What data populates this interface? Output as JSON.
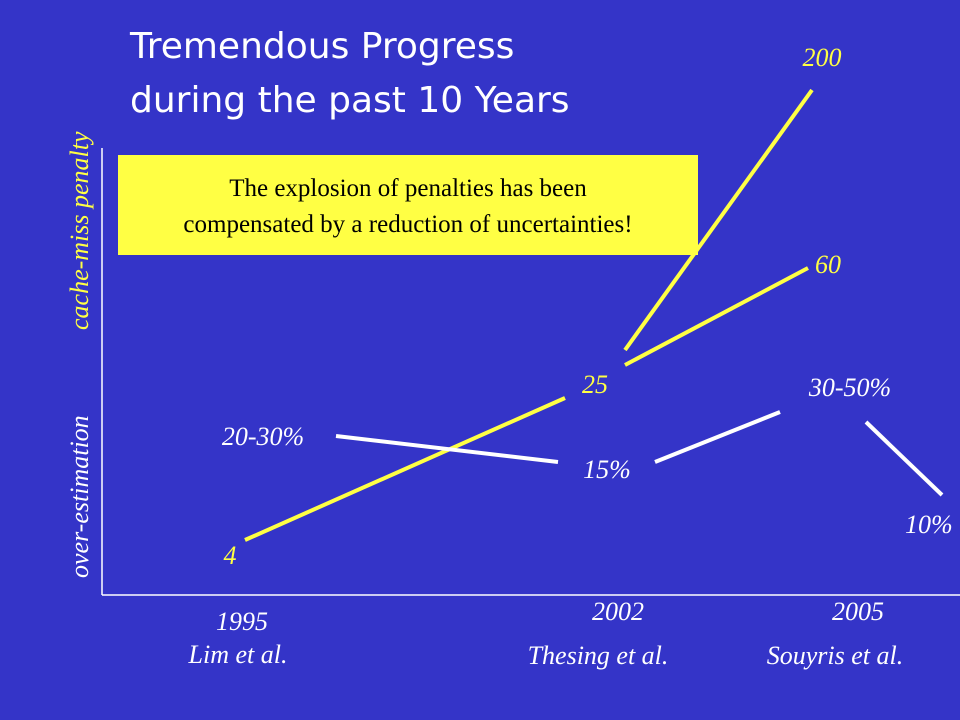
{
  "slide": {
    "title": [
      "Tremendous Progress",
      "during the past 10 Years"
    ],
    "callout": [
      "The explosion of penalties has been",
      "compensated by a reduction of uncertainties!"
    ],
    "y_axis": {
      "upper": "cache-miss penalty",
      "lower": "over-estimation"
    },
    "penalty_labels": [
      "4",
      "25",
      "60",
      "200"
    ],
    "overestimation_labels": [
      "20-30%",
      "15%",
      "30-50%",
      "10%"
    ],
    "x_labels": [
      {
        "year": "1995",
        "author": "Lim et al."
      },
      {
        "year": "2002",
        "author": "Thesing et al."
      },
      {
        "year": "2005",
        "author": "Souyris et al."
      }
    ]
  }
}
